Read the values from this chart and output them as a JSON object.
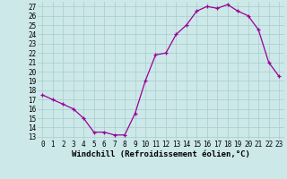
{
  "x": [
    0,
    1,
    2,
    3,
    4,
    5,
    6,
    7,
    8,
    9,
    10,
    11,
    12,
    13,
    14,
    15,
    16,
    17,
    18,
    19,
    20,
    21,
    22,
    23
  ],
  "y": [
    17.5,
    17.0,
    16.5,
    16.0,
    15.0,
    13.5,
    13.5,
    13.2,
    13.2,
    15.5,
    19.0,
    21.8,
    22.0,
    24.0,
    25.0,
    26.5,
    27.0,
    26.8,
    27.2,
    26.5,
    26.0,
    24.5,
    21.0,
    19.5
  ],
  "line_color": "#990099",
  "marker": "+",
  "bg_color": "#cce8e8",
  "grid_color": "#aacccc",
  "xlabel": "Windchill (Refroidissement éolien,°C)",
  "ylabel_ticks": [
    13,
    14,
    15,
    16,
    17,
    18,
    19,
    20,
    21,
    22,
    23,
    24,
    25,
    26,
    27
  ],
  "ylim": [
    12.7,
    27.5
  ],
  "xlim": [
    -0.5,
    23.5
  ],
  "xticks": [
    0,
    1,
    2,
    3,
    4,
    5,
    6,
    7,
    8,
    9,
    10,
    11,
    12,
    13,
    14,
    15,
    16,
    17,
    18,
    19,
    20,
    21,
    22,
    23
  ],
  "tick_fontsize": 5.5,
  "xlabel_fontsize": 6.5,
  "axis_bg": "#cce8e8"
}
